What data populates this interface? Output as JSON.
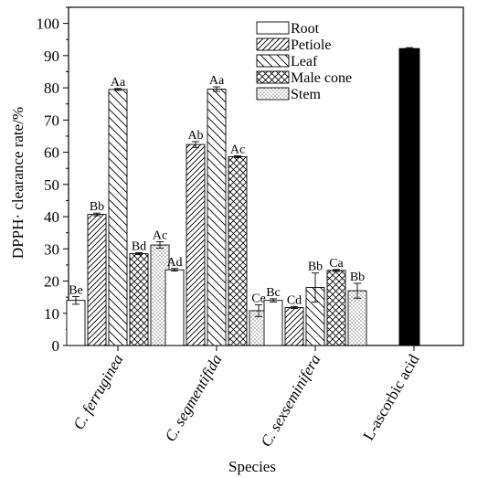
{
  "chart_data": {
    "type": "bar",
    "xlabel": "Species",
    "ylabel": "DPPH· clearance rate/%",
    "ylim": [
      0,
      105
    ],
    "yticks": [
      0,
      10,
      20,
      30,
      40,
      50,
      60,
      70,
      80,
      90,
      100
    ],
    "categories": [
      "C. ferruginea",
      "C. segmentifida",
      "C. sexseminifera",
      "L-ascorbic acid"
    ],
    "categories_italic": [
      true,
      true,
      true,
      false
    ],
    "legend_position": "top-center",
    "series": [
      {
        "name": "Root",
        "pattern": "blank",
        "values": [
          14.0,
          23.5,
          14.0,
          null
        ],
        "errors": [
          1.2,
          0.4,
          0.5,
          null
        ],
        "letters": [
          "Be",
          "Ad",
          "Bc",
          null
        ]
      },
      {
        "name": "Petiole",
        "pattern": "diag-up",
        "values": [
          40.7,
          62.4,
          11.8,
          null
        ],
        "errors": [
          0.4,
          0.9,
          0.3,
          null
        ],
        "letters": [
          "Bb",
          "Ab",
          "Cd",
          null
        ]
      },
      {
        "name": "Leaf",
        "pattern": "diag-down",
        "values": [
          79.5,
          79.6,
          18.0,
          null
        ],
        "errors": [
          0.3,
          0.7,
          4.5,
          null
        ],
        "letters": [
          "Aa",
          "Aa",
          "Bb",
          null
        ]
      },
      {
        "name": "Male cone",
        "pattern": "cross",
        "values": [
          28.5,
          58.6,
          23.3,
          null
        ],
        "errors": [
          0.3,
          0.3,
          0.3,
          null
        ],
        "letters": [
          "Bd",
          "Ac",
          "Ca",
          null
        ]
      },
      {
        "name": "Stem",
        "pattern": "dots",
        "values": [
          31.2,
          10.8,
          17.0,
          null
        ],
        "errors": [
          1.0,
          1.8,
          2.3,
          null
        ],
        "letters": [
          "Ac",
          "Ce",
          "Bb",
          null
        ]
      }
    ],
    "control": {
      "category_index": 3,
      "value": 92.2,
      "error": 0.3,
      "color": "#000000"
    }
  }
}
